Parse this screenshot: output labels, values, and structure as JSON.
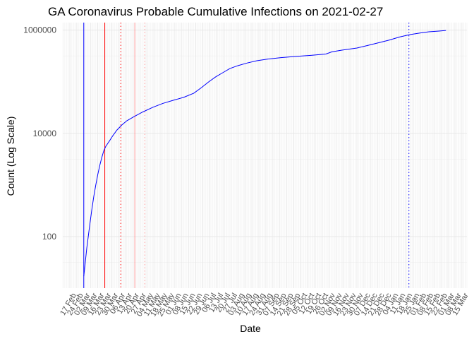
{
  "chart_data": {
    "type": "line",
    "title": "GA Coronavirus Probable Cumulative Infections on 2021-02-27",
    "xlabel": "Date",
    "ylabel": "Count (Log Scale)",
    "y_scale": "log10",
    "ylim": [
      10,
      1400000
    ],
    "xlim": [
      "2020-02-10",
      "2021-03-20"
    ],
    "y_ticks": [
      {
        "value": 100,
        "label": "100"
      },
      {
        "value": 10000,
        "label": "10000"
      },
      {
        "value": 1000000,
        "label": "1000000"
      }
    ],
    "x_ticks": [
      {
        "date": "2020-02-17",
        "label": "17 Feb"
      },
      {
        "date": "2020-02-24",
        "label": "24 Feb"
      },
      {
        "date": "2020-03-02",
        "label": "02 Mar"
      },
      {
        "date": "2020-03-09",
        "label": "09 Mar"
      },
      {
        "date": "2020-03-16",
        "label": "16 Mar"
      },
      {
        "date": "2020-03-23",
        "label": "23 Mar"
      },
      {
        "date": "2020-03-30",
        "label": "30 Mar"
      },
      {
        "date": "2020-04-06",
        "label": "06 Apr"
      },
      {
        "date": "2020-04-13",
        "label": "13 Apr"
      },
      {
        "date": "2020-04-20",
        "label": "20 Apr"
      },
      {
        "date": "2020-04-27",
        "label": "27 Apr"
      },
      {
        "date": "2020-05-04",
        "label": "04 May"
      },
      {
        "date": "2020-05-11",
        "label": "11 May"
      },
      {
        "date": "2020-05-18",
        "label": "18 May"
      },
      {
        "date": "2020-05-25",
        "label": "25 May"
      },
      {
        "date": "2020-06-01",
        "label": "01 Jun"
      },
      {
        "date": "2020-06-08",
        "label": "08 Jun"
      },
      {
        "date": "2020-06-15",
        "label": "15 Jun"
      },
      {
        "date": "2020-06-22",
        "label": "22 Jun"
      },
      {
        "date": "2020-06-29",
        "label": "29 Jun"
      },
      {
        "date": "2020-07-06",
        "label": "06 Jul"
      },
      {
        "date": "2020-07-13",
        "label": "13 Jul"
      },
      {
        "date": "2020-07-20",
        "label": "20 Jul"
      },
      {
        "date": "2020-07-27",
        "label": "27 Jul"
      },
      {
        "date": "2020-08-03",
        "label": "03 Aug"
      },
      {
        "date": "2020-08-10",
        "label": "10 Aug"
      },
      {
        "date": "2020-08-17",
        "label": "17 Aug"
      },
      {
        "date": "2020-08-24",
        "label": "24 Aug"
      },
      {
        "date": "2020-08-31",
        "label": "31 Aug"
      },
      {
        "date": "2020-09-07",
        "label": "07 Sep"
      },
      {
        "date": "2020-09-14",
        "label": "14 Sep"
      },
      {
        "date": "2020-09-21",
        "label": "21 Sep"
      },
      {
        "date": "2020-09-28",
        "label": "28 Sep"
      },
      {
        "date": "2020-10-05",
        "label": "05 Oct"
      },
      {
        "date": "2020-10-12",
        "label": "12 Oct"
      },
      {
        "date": "2020-10-19",
        "label": "19 Oct"
      },
      {
        "date": "2020-10-26",
        "label": "26 Oct"
      },
      {
        "date": "2020-11-02",
        "label": "02 Nov"
      },
      {
        "date": "2020-11-09",
        "label": "09 Nov"
      },
      {
        "date": "2020-11-16",
        "label": "16 Nov"
      },
      {
        "date": "2020-11-23",
        "label": "23 Nov"
      },
      {
        "date": "2020-11-30",
        "label": "30 Nov"
      },
      {
        "date": "2020-12-07",
        "label": "07 Dec"
      },
      {
        "date": "2020-12-14",
        "label": "14 Dec"
      },
      {
        "date": "2020-12-21",
        "label": "21 Dec"
      },
      {
        "date": "2020-12-28",
        "label": "28 Dec"
      },
      {
        "date": "2021-01-04",
        "label": "04 Jan"
      },
      {
        "date": "2021-01-11",
        "label": "11 Jan"
      },
      {
        "date": "2021-01-18",
        "label": "18 Jan"
      },
      {
        "date": "2021-01-25",
        "label": "25 Jan"
      },
      {
        "date": "2021-02-01",
        "label": "01 Feb"
      },
      {
        "date": "2021-02-08",
        "label": "08 Feb"
      },
      {
        "date": "2021-02-15",
        "label": "15 Feb"
      },
      {
        "date": "2021-02-22",
        "label": "22 Feb"
      },
      {
        "date": "2021-03-01",
        "label": "01 Mar"
      },
      {
        "date": "2021-03-08",
        "label": "08 Mar"
      },
      {
        "date": "2021-03-15",
        "label": "15 Mar"
      }
    ],
    "grid": true,
    "series": [
      {
        "color": "#0000ff",
        "points": [
          [
            "2020-03-02",
            17
          ],
          [
            "2020-03-05",
            60
          ],
          [
            "2020-03-08",
            170
          ],
          [
            "2020-03-10",
            330
          ],
          [
            "2020-03-12",
            600
          ],
          [
            "2020-03-14",
            1000
          ],
          [
            "2020-03-16",
            1600
          ],
          [
            "2020-03-18",
            2400
          ],
          [
            "2020-03-20",
            3400
          ],
          [
            "2020-03-22",
            4600
          ],
          [
            "2020-03-24",
            5600
          ],
          [
            "2020-03-26",
            6400
          ],
          [
            "2020-03-28",
            7300
          ],
          [
            "2020-03-31",
            9000
          ],
          [
            "2020-04-04",
            11500
          ],
          [
            "2020-04-09",
            14500
          ],
          [
            "2020-04-14",
            17500
          ],
          [
            "2020-04-21",
            21000
          ],
          [
            "2020-04-30",
            26000
          ],
          [
            "2020-05-10",
            32000
          ],
          [
            "2020-05-20",
            38000
          ],
          [
            "2020-05-31",
            44000
          ],
          [
            "2020-06-10",
            50000
          ],
          [
            "2020-06-20",
            60000
          ],
          [
            "2020-06-28",
            78000
          ],
          [
            "2020-07-05",
            100000
          ],
          [
            "2020-07-12",
            125000
          ],
          [
            "2020-07-19",
            150000
          ],
          [
            "2020-07-26",
            180000
          ],
          [
            "2020-08-03",
            205000
          ],
          [
            "2020-08-12",
            230000
          ],
          [
            "2020-08-22",
            255000
          ],
          [
            "2020-09-02",
            275000
          ],
          [
            "2020-09-15",
            293000
          ],
          [
            "2020-09-30",
            310000
          ],
          [
            "2020-10-15",
            325000
          ],
          [
            "2020-10-30",
            345000
          ],
          [
            "2020-11-05",
            380000
          ],
          [
            "2020-11-15",
            410000
          ],
          [
            "2020-11-30",
            450000
          ],
          [
            "2020-12-10",
            500000
          ],
          [
            "2020-12-20",
            560000
          ],
          [
            "2021-01-01",
            640000
          ],
          [
            "2021-01-12",
            740000
          ],
          [
            "2021-01-22",
            820000
          ],
          [
            "2021-02-01",
            880000
          ],
          [
            "2021-02-10",
            930000
          ],
          [
            "2021-02-20",
            960000
          ],
          [
            "2021-02-27",
            985000
          ]
        ]
      }
    ],
    "reference_lines": [
      {
        "date": "2020-03-02",
        "color": "#0000ff",
        "style": "solid"
      },
      {
        "date": "2020-03-23",
        "color": "#ff0000",
        "style": "solid"
      },
      {
        "date": "2020-04-08",
        "color": "#ff0000",
        "style": "dotted"
      },
      {
        "date": "2020-04-22",
        "color": "#ff9999",
        "style": "solid"
      },
      {
        "date": "2020-05-02",
        "color": "#ff9999",
        "style": "dotted"
      },
      {
        "date": "2021-01-21",
        "color": "#0000ff",
        "style": "dotted"
      }
    ]
  }
}
